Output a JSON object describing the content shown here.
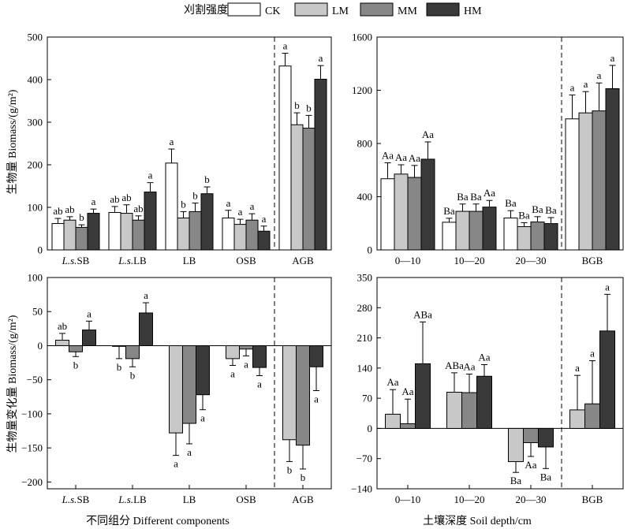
{
  "legend": {
    "title": "刈割强度",
    "items": [
      {
        "label": "CK",
        "color": "#ffffff"
      },
      {
        "label": "LM",
        "color": "#c8c8c8"
      },
      {
        "label": "MM",
        "color": "#878787"
      },
      {
        "label": "HM",
        "color": "#3a3a3a"
      }
    ]
  },
  "bottom_labels": {
    "left": "不同组分 Different components",
    "right": "土壤深度 Soil depth/cm"
  },
  "ylabels": {
    "top": "生物量 Biomass/(g/m²)",
    "bottom": "生物量变化量 Biomass/(g/m²)"
  },
  "chart_data": [
    {
      "type": "bar",
      "panel": "top-left",
      "categories": [
        "L.s.SB",
        "L.s.LB",
        "LB",
        "OSB",
        "AGB"
      ],
      "ylim": [
        0,
        500
      ],
      "yticks": [
        0,
        100,
        200,
        300,
        400,
        500
      ],
      "series": [
        {
          "name": "CK",
          "values": [
            62,
            88,
            204,
            75,
            432
          ],
          "errors": [
            12,
            14,
            33,
            18,
            30
          ],
          "labels": [
            "ab",
            "ab",
            "a",
            "a",
            "a"
          ]
        },
        {
          "name": "LM",
          "values": [
            70,
            86,
            75,
            60,
            294
          ],
          "errors": [
            8,
            20,
            15,
            12,
            28
          ],
          "labels": [
            "ab",
            "ab",
            "b",
            "a",
            "b"
          ]
        },
        {
          "name": "MM",
          "values": [
            53,
            70,
            90,
            70,
            286
          ],
          "errors": [
            6,
            10,
            20,
            15,
            30
          ],
          "labels": [
            "b",
            "ab",
            "b",
            "a",
            "b"
          ]
        },
        {
          "name": "HM",
          "values": [
            86,
            136,
            132,
            44,
            401
          ],
          "errors": [
            10,
            22,
            16,
            12,
            32
          ],
          "labels": [
            "a",
            "a",
            "b",
            "a",
            "a"
          ]
        }
      ]
    },
    {
      "type": "bar",
      "panel": "top-right",
      "categories": [
        "0—10",
        "10—20",
        "20—30",
        "BGB"
      ],
      "ylim": [
        0,
        1600
      ],
      "yticks": [
        0,
        400,
        800,
        1200,
        1600
      ],
      "series": [
        {
          "name": "CK",
          "values": [
            535,
            208,
            240,
            985
          ],
          "errors": [
            120,
            30,
            55,
            180
          ],
          "labels": [
            "Aa",
            "Ba",
            "Ba",
            "a"
          ]
        },
        {
          "name": "LM",
          "values": [
            570,
            290,
            175,
            1030
          ],
          "errors": [
            70,
            55,
            30,
            160
          ],
          "labels": [
            "Aa",
            "Ba",
            "Ba",
            "a"
          ]
        },
        {
          "name": "MM",
          "values": [
            545,
            290,
            210,
            1045
          ],
          "errors": [
            90,
            55,
            40,
            210
          ],
          "labels": [
            "Aa",
            "Ba",
            "Ba",
            "a"
          ]
        },
        {
          "name": "HM",
          "values": [
            682,
            322,
            198,
            1212
          ],
          "errors": [
            130,
            50,
            45,
            175
          ],
          "labels": [
            "Aa",
            "Aa",
            "Ba",
            "a"
          ]
        }
      ]
    },
    {
      "type": "bar",
      "panel": "bottom-left",
      "categories": [
        "L.s.SB",
        "L.s.LB",
        "LB",
        "OSB",
        "AGB"
      ],
      "ylim": [
        -210,
        100
      ],
      "yticks": [
        -200,
        -150,
        -100,
        -50,
        0,
        50,
        100
      ],
      "series": [
        {
          "name": "LM",
          "values": [
            8,
            -1,
            -128,
            -19,
            -138
          ],
          "errors": [
            10,
            18,
            33,
            10,
            32
          ],
          "labels": [
            "ab",
            "b",
            "a",
            "a",
            "b"
          ]
        },
        {
          "name": "MM",
          "values": [
            -9,
            -19,
            -114,
            -5,
            -146
          ],
          "errors": [
            7,
            12,
            30,
            10,
            35
          ],
          "labels": [
            "b",
            "b",
            "a",
            "a",
            "b"
          ]
        },
        {
          "name": "HM",
          "values": [
            23,
            48,
            -72,
            -32,
            -31
          ],
          "errors": [
            13,
            15,
            22,
            12,
            35
          ],
          "labels": [
            "a",
            "a",
            "a",
            "a",
            "a"
          ]
        }
      ]
    },
    {
      "type": "bar",
      "panel": "bottom-right",
      "categories": [
        "0—10",
        "10—20",
        "20—30",
        "BGB"
      ],
      "ylim": [
        -140,
        350
      ],
      "yticks": [
        -140,
        -70,
        0,
        70,
        140,
        210,
        280,
        350
      ],
      "series": [
        {
          "name": "LM",
          "values": [
            33,
            84,
            -77,
            43
          ],
          "errors": [
            57,
            45,
            25,
            80
          ],
          "labels": [
            "Aa",
            "ABa",
            "Ba",
            "a"
          ]
        },
        {
          "name": "MM",
          "values": [
            11,
            83,
            -33,
            57
          ],
          "errors": [
            57,
            43,
            32,
            100
          ],
          "labels": [
            "Aa",
            "Aa",
            "Aa",
            "a"
          ]
        },
        {
          "name": "HM",
          "values": [
            150,
            121,
            -43,
            226
          ],
          "errors": [
            97,
            27,
            50,
            85
          ],
          "labels": [
            "ABa",
            "Aa",
            "Ba",
            "a"
          ]
        }
      ]
    }
  ]
}
